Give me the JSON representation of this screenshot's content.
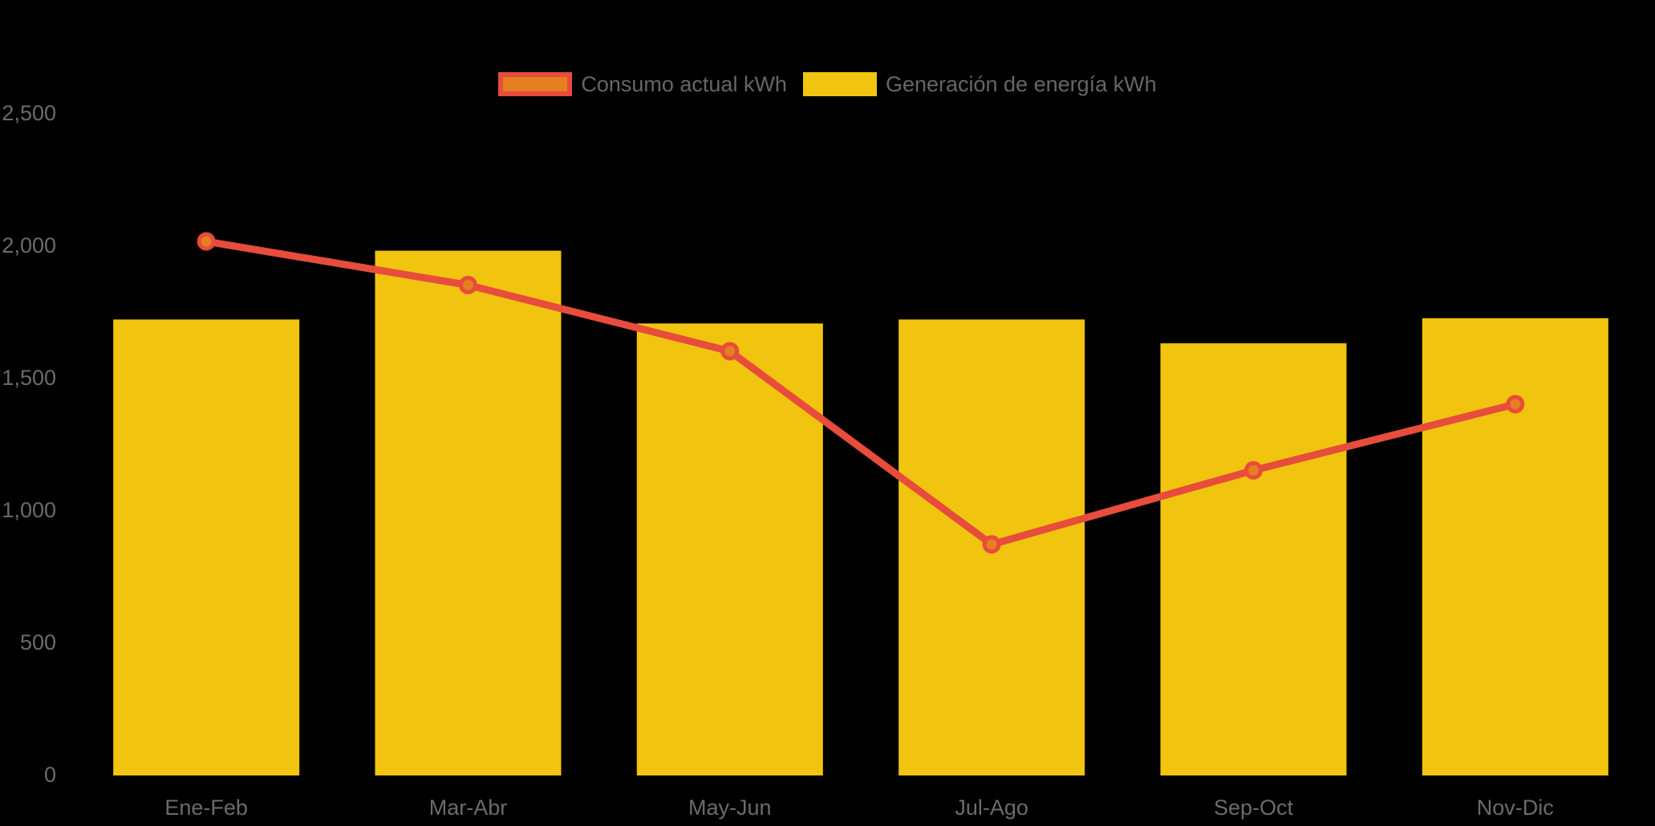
{
  "chart_data": {
    "type": "bar",
    "subtype": "bar+line combo",
    "title": "",
    "categories": [
      "Ene-Feb",
      "Mar-Abr",
      "May-Jun",
      "Jul-Ago",
      "Sep-Oct",
      "Nov-Dic"
    ],
    "series": [
      {
        "name": "Consumo actual kWh",
        "type": "line",
        "color": "#E74C3C",
        "point_color": "#E67E22",
        "values": [
          2015,
          1850,
          1600,
          870,
          1150,
          1400
        ]
      },
      {
        "name": "Generación de energía kWh",
        "type": "bar",
        "color": "#F1C40F",
        "values": [
          1720,
          1980,
          1705,
          1720,
          1630,
          1725
        ]
      }
    ],
    "xlabel": "",
    "ylabel": "",
    "ylim": [
      0,
      2500
    ],
    "yticks": [
      0,
      500,
      1000,
      1500,
      2000,
      2500
    ],
    "ytick_labels": [
      "0",
      "500",
      "1,000",
      "1,500",
      "2,000",
      "2,500"
    ],
    "grid": false,
    "legend_position": "top-center",
    "axis_text_color": "#6B6B6B",
    "legend_text_color": "#666666",
    "background_color": "#000000"
  }
}
